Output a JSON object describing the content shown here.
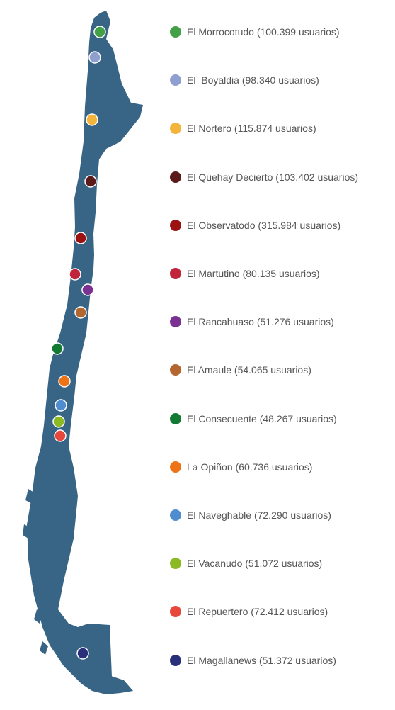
{
  "newspapers": [
    {
      "label": "El Morrocotudo (100.399 usuarios)",
      "color": "#43a047"
    },
    {
      "label": "El  Boyaldia (98.340 usuarios)",
      "color": "#8e9fd0"
    },
    {
      "label": "El Nortero (115.874 usuarios)",
      "color": "#f2b43b"
    },
    {
      "label": "El Quehay Decierto (103.402 usuarios)",
      "color": "#5a1a1a"
    },
    {
      "label": "El Observatodo (315.984 usuarios)",
      "color": "#9b1212"
    },
    {
      "label": "El Martutino (80.135 usuarios)",
      "color": "#c0233a"
    },
    {
      "label": "El Rancahuaso (51.276 usuarios)",
      "color": "#7a3192"
    },
    {
      "label": "El Amaule (54.065 usuarios)",
      "color": "#b3662f"
    },
    {
      "label": "El Consecuente (48.267 usuarios)",
      "color": "#137a33"
    },
    {
      "label": "La Opiñon (60.736 usuarios)",
      "color": "#ee7216"
    },
    {
      "label": "El Naveghable (72.290 usuarios)",
      "color": "#4f8cd0"
    },
    {
      "label": "El Vacanudo (51.072 usuarios)",
      "color": "#8bba25"
    },
    {
      "label": "El Repuertero (72.412 usuarios)",
      "color": "#e8473b"
    },
    {
      "label": "El Magallanews (51.372 usuarios)",
      "color": "#2a2f7a"
    }
  ],
  "map_color": "#386585"
}
